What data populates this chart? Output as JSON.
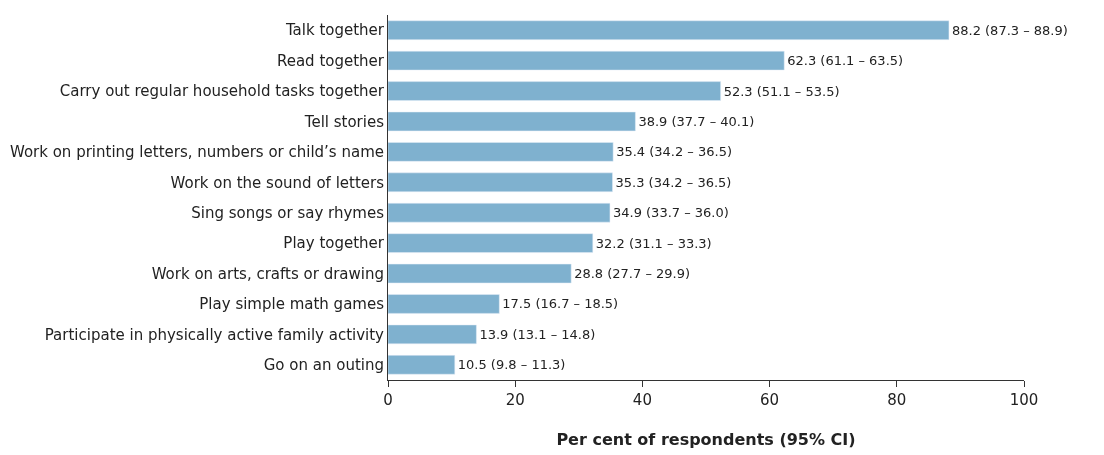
{
  "chart_data": {
    "type": "bar",
    "orientation": "horizontal",
    "xlabel": "Per cent of respondents (95% CI)",
    "categories": [
      "Talk together",
      "Read together",
      "Carry out regular household tasks together",
      "Tell stories",
      "Work on printing letters, numbers or child’s name",
      "Work on the sound of letters",
      "Sing songs or say rhymes",
      "Play together",
      "Work on arts, crafts or drawing",
      "Play simple math games",
      "Participate in physically active family activity",
      "Go on an outing"
    ],
    "values": [
      88.2,
      62.3,
      52.3,
      38.9,
      35.4,
      35.3,
      34.9,
      32.2,
      28.8,
      17.5,
      13.9,
      10.5
    ],
    "value_labels": [
      "88.2 (87.3 – 88.9)",
      "62.3 (61.1 – 63.5)",
      "52.3 (51.1 – 53.5)",
      "38.9 (37.7 – 40.1)",
      "35.4 (34.2 – 36.5)",
      "35.3 (34.2 – 36.5)",
      "34.9 (33.7 – 36.0)",
      "32.2 (31.1 – 33.3)",
      "28.8 (27.7 – 29.9)",
      "17.5 (16.7 – 18.5)",
      "13.9 (13.1 – 14.8)",
      "10.5 (9.8 – 11.3)"
    ],
    "color": "#7fb1cf",
    "xlim": [
      0,
      100
    ],
    "xticks": [
      0,
      20,
      40,
      60,
      80,
      100
    ]
  }
}
